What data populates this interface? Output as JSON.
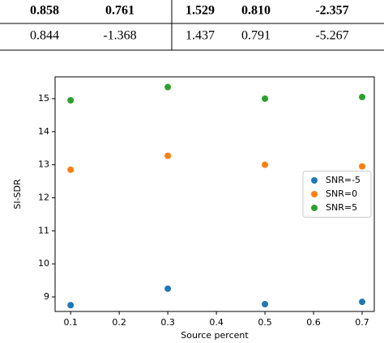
{
  "table": {
    "rows": [
      [
        "0.858",
        "0.761",
        "1.529",
        "0.810",
        "-2.357"
      ],
      [
        "0.844",
        "-1.368",
        "1.437",
        "0.791",
        "-5.267"
      ]
    ]
  },
  "chart_data": {
    "type": "scatter",
    "xlabel": "Source percent",
    "ylabel": "SI-SDR",
    "x": [
      0.1,
      0.3,
      0.5,
      0.7
    ],
    "series": [
      {
        "name": "SNR=-5",
        "color": "#1f77b4",
        "values": [
          8.75,
          9.25,
          8.78,
          8.85
        ]
      },
      {
        "name": "SNR=0",
        "color": "#ff7f0e",
        "values": [
          12.85,
          13.27,
          13.0,
          12.95
        ]
      },
      {
        "name": "SNR=5",
        "color": "#2ca02c",
        "values": [
          14.95,
          15.35,
          15.0,
          15.05
        ]
      }
    ],
    "xlim": [
      0.068,
      0.725
    ],
    "ylim": [
      8.56,
      15.66
    ],
    "xticks": [
      0.1,
      0.2,
      0.3,
      0.4,
      0.5,
      0.6,
      0.7
    ],
    "yticks": [
      9,
      10,
      11,
      12,
      13,
      14,
      15
    ],
    "legend": "right"
  }
}
